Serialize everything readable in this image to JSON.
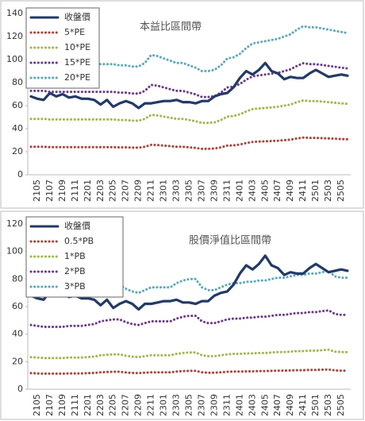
{
  "chart_data": [
    {
      "type": "line",
      "title": "本益比區間帶",
      "legend": "upper left",
      "grid": false,
      "categories": [
        null,
        "2105",
        null,
        "2107",
        null,
        "2109",
        null,
        "2111",
        null,
        "2201",
        null,
        "2203",
        null,
        "2205",
        null,
        "2207",
        null,
        "2209",
        null,
        "2211",
        null,
        "2301",
        null,
        "2303",
        null,
        "2305",
        null,
        "2307",
        null,
        "2309",
        null,
        "2311",
        null,
        "2401",
        null,
        "2403",
        null,
        "2405",
        null,
        "2407",
        null,
        "2409",
        null,
        "2411",
        null,
        "2501",
        null,
        "2503",
        null,
        "2505",
        null
      ],
      "ylim": [
        0,
        140
      ],
      "yticks": [
        0,
        20,
        40,
        60,
        80,
        100,
        120,
        140
      ],
      "series": [
        {
          "name": "收盤價",
          "color": "#1f3a6e",
          "line_style": "solid",
          "values": [
            68,
            66,
            65,
            71,
            68,
            70,
            67,
            68,
            66,
            66,
            65,
            61,
            65,
            59,
            62,
            64,
            62,
            58,
            62,
            62,
            63,
            64,
            64,
            65,
            63,
            63,
            62,
            64,
            64,
            68,
            70,
            71,
            76,
            84,
            90,
            87,
            91,
            97,
            90,
            88,
            83,
            85,
            84,
            84,
            88,
            91,
            88,
            85,
            86,
            87,
            86
          ]
        },
        {
          "name": "5*PE",
          "color": "#c0392b",
          "line_style": "dotted",
          "values": [
            24.3,
            24.3,
            24.3,
            24,
            24,
            24,
            24,
            24,
            24,
            24,
            24,
            24,
            24,
            24,
            23.8,
            23.8,
            23.5,
            23.5,
            24.3,
            26,
            25.8,
            25.3,
            24.8,
            24.3,
            24.3,
            23.8,
            23.3,
            22.5,
            22.5,
            22.8,
            23.8,
            25.3,
            25.5,
            26.3,
            27.5,
            28.5,
            28.8,
            29,
            29.3,
            29.5,
            30,
            30.5,
            31.5,
            32.3,
            32,
            32,
            31.8,
            31.5,
            31.3,
            31,
            30.8
          ]
        },
        {
          "name": "10*PE",
          "color": "#9bbb3b",
          "line_style": "dotted",
          "values": [
            48.5,
            48.5,
            48.5,
            48,
            48,
            48,
            48,
            48,
            48,
            48,
            48,
            48,
            48,
            48,
            47.5,
            47.5,
            47,
            47,
            48.5,
            52,
            51.5,
            50.5,
            49.5,
            48.5,
            48.5,
            47.5,
            46.5,
            45,
            45,
            45.5,
            47.5,
            50.5,
            51,
            52.5,
            55,
            57,
            57.5,
            58,
            58.5,
            59,
            60,
            61,
            63,
            64.5,
            64,
            64,
            63.5,
            63,
            62.5,
            62,
            61.5
          ]
        },
        {
          "name": "15*PE",
          "color": "#7030a0",
          "line_style": "dotted",
          "values": [
            72.8,
            72.8,
            72.8,
            72,
            72,
            72,
            72,
            72,
            72,
            72,
            72,
            72,
            72,
            72,
            71.3,
            71.3,
            70.5,
            70.5,
            72.8,
            78,
            77.3,
            75.8,
            74.3,
            72.8,
            72.8,
            71.3,
            69.8,
            67.5,
            67.5,
            68.3,
            71.3,
            75.8,
            76.5,
            78.8,
            82.5,
            85.5,
            86.3,
            87,
            87.8,
            88.5,
            90,
            91.5,
            94.5,
            96.8,
            96,
            96,
            95.3,
            94.5,
            93.8,
            93,
            92.3
          ]
        },
        {
          "name": "20*PE",
          "color": "#4bacc6",
          "line_style": "dotted",
          "values": [
            97,
            97,
            97,
            96,
            96,
            96,
            96,
            96,
            96,
            96,
            96,
            96,
            96,
            96,
            95,
            95,
            94,
            94,
            97,
            104,
            103,
            101,
            99,
            97,
            97,
            95,
            93,
            90,
            90,
            91,
            95,
            101,
            102,
            105,
            110,
            114,
            115,
            116,
            117,
            118,
            120,
            122,
            126,
            129,
            128,
            128,
            127,
            126,
            125,
            124,
            123
          ]
        }
      ]
    },
    {
      "type": "line",
      "title": "股價淨值比區間帶",
      "legend": "upper left",
      "grid": false,
      "categories": [
        null,
        "2105",
        null,
        "2107",
        null,
        "2109",
        null,
        "2111",
        null,
        "2201",
        null,
        "2203",
        null,
        "2205",
        null,
        "2207",
        null,
        "2209",
        null,
        "2211",
        null,
        "2301",
        null,
        "2303",
        null,
        "2305",
        null,
        "2307",
        null,
        "2309",
        null,
        "2311",
        null,
        "2401",
        null,
        "2403",
        null,
        "2405",
        null,
        "2407",
        null,
        "2409",
        null,
        "2411",
        null,
        "2501",
        null,
        "2503",
        null,
        "2505",
        null
      ],
      "ylim": [
        0,
        120
      ],
      "yticks": [
        0,
        20,
        40,
        60,
        80,
        100,
        120
      ],
      "series": [
        {
          "name": "收盤價",
          "color": "#1f3a6e",
          "line_style": "solid",
          "values": [
            68,
            66,
            65,
            71,
            68,
            70,
            67,
            68,
            66,
            66,
            65,
            61,
            65,
            59,
            62,
            64,
            62,
            58,
            62,
            62,
            63,
            64,
            64,
            65,
            63,
            63,
            62,
            64,
            64,
            68,
            70,
            71,
            76,
            84,
            90,
            87,
            91,
            97,
            90,
            88,
            83,
            85,
            84,
            84,
            88,
            91,
            88,
            85,
            86,
            87,
            86
          ]
        },
        {
          "name": "0.5*PB",
          "color": "#c0392b",
          "line_style": "dotted",
          "values": [
            11.7,
            11.5,
            11.3,
            11.3,
            11.3,
            11.3,
            11.5,
            11.5,
            11.5,
            11.7,
            11.8,
            12.3,
            12.5,
            12.7,
            12.7,
            12.2,
            11.8,
            11.7,
            12,
            12.3,
            12.3,
            12.3,
            12.3,
            12.8,
            13.2,
            13.3,
            13.3,
            12.3,
            12,
            12,
            12.3,
            12.7,
            12.8,
            12.8,
            13,
            13,
            13.2,
            13.2,
            13.3,
            13.5,
            13.5,
            13.7,
            13.8,
            13.8,
            14,
            14,
            14.2,
            14.3,
            13.7,
            13.5,
            13.5
          ]
        },
        {
          "name": "1*PB",
          "color": "#9bbb3b",
          "line_style": "dotted",
          "values": [
            23.3,
            23,
            22.7,
            22.7,
            22.7,
            22.7,
            23,
            23,
            23,
            23.3,
            23.7,
            24.7,
            25,
            25.3,
            25.3,
            24.3,
            23.7,
            23.3,
            24,
            24.7,
            24.7,
            24.7,
            24.7,
            25.7,
            26.3,
            26.7,
            26.7,
            24.7,
            24,
            24,
            24.7,
            25.3,
            25.7,
            25.7,
            26,
            26,
            26.3,
            26.3,
            26.7,
            27,
            27,
            27.3,
            27.7,
            27.7,
            28,
            28,
            28.3,
            28.7,
            27.3,
            27,
            27
          ]
        },
        {
          "name": "2*PB",
          "color": "#7030a0",
          "line_style": "dotted",
          "values": [
            46.7,
            46,
            45.3,
            45.3,
            45.3,
            45.3,
            46,
            46,
            46,
            46.7,
            47.3,
            49.3,
            50,
            50.7,
            50.7,
            48.7,
            47.3,
            46.7,
            48,
            49.3,
            49.3,
            49.3,
            49.3,
            51.3,
            52.7,
            53.3,
            53.3,
            49.3,
            48,
            48,
            49.3,
            50.7,
            51.3,
            51.3,
            52,
            52,
            52.7,
            52.7,
            53.3,
            54,
            54,
            54.7,
            55.3,
            55.3,
            56,
            56,
            56.7,
            57.3,
            54.7,
            54,
            54
          ]
        },
        {
          "name": "3*PB",
          "color": "#4bacc6",
          "line_style": "dotted",
          "values": [
            70,
            69,
            68,
            68,
            68,
            68,
            69,
            69,
            69,
            70,
            71,
            74,
            75,
            76,
            76,
            73,
            71,
            70,
            72,
            74,
            74,
            74,
            74,
            77,
            79,
            80,
            80,
            74,
            72,
            72,
            74,
            76,
            77,
            77,
            78,
            78,
            79,
            79,
            80,
            81,
            81,
            82,
            83,
            83,
            84,
            84,
            85,
            86,
            82,
            81,
            81
          ]
        }
      ]
    }
  ]
}
